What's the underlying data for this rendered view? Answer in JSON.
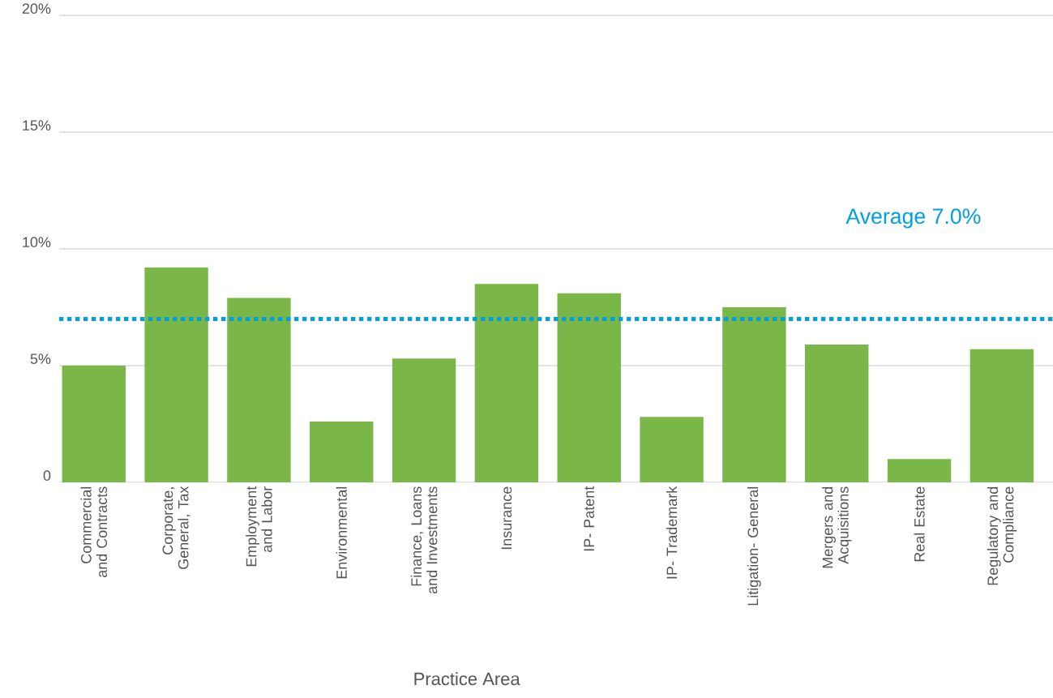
{
  "chart_data": {
    "type": "bar",
    "xlabel": "Practice Area",
    "categories": [
      "Commercial and Contracts",
      "Corporate, General, Tax",
      "Employment and Labor",
      "Environmental",
      "Finance, Loans and Investments",
      "Insurance",
      "IP- Patent",
      "IP- Trademark",
      "Litigation- General",
      "Mergers and Acquisitions",
      "Real Estate",
      "Regulatory and Compliance"
    ],
    "values": [
      5.0,
      9.2,
      7.9,
      2.6,
      5.3,
      8.5,
      8.1,
      2.8,
      7.5,
      5.9,
      1.0,
      5.7
    ],
    "color": "#7ab648",
    "ylim": [
      0,
      20
    ],
    "yticks": [
      {
        "value": 0,
        "label": "0"
      },
      {
        "value": 5,
        "label": "5%"
      },
      {
        "value": 10,
        "label": "10%"
      },
      {
        "value": 15,
        "label": "15%"
      },
      {
        "value": 20,
        "label": "20%"
      }
    ],
    "grid": "y",
    "ref_lines": [
      {
        "axis": "y",
        "value": 7.0,
        "label": "Average 7.0%",
        "color": "#009fdf",
        "line_style": "dotted"
      }
    ]
  }
}
